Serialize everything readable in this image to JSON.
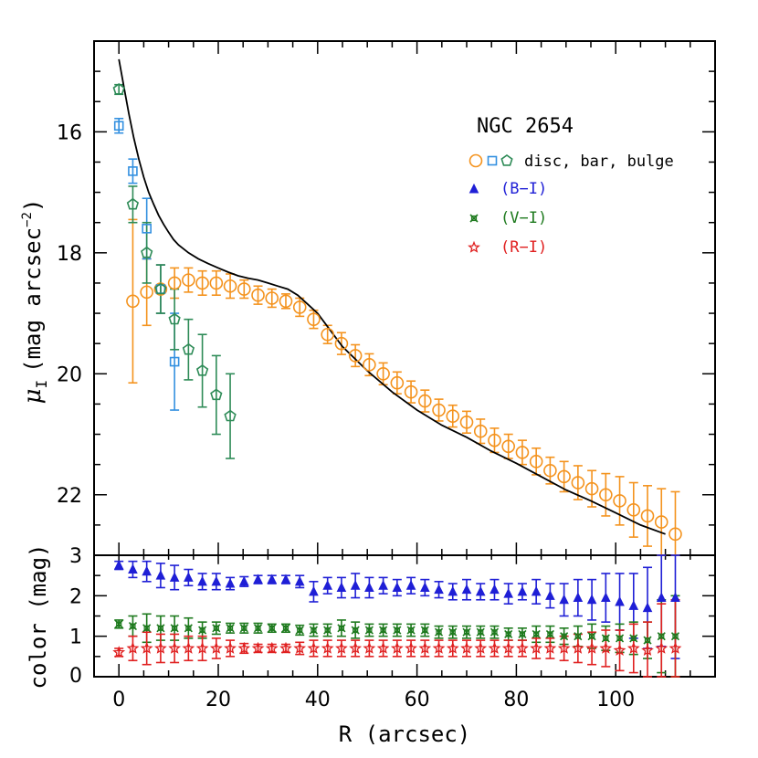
{
  "chart_data": [
    {
      "type": "scatter",
      "panel": "upper",
      "title": "NGC 2654",
      "ylabel_symbol": "μ",
      "ylabel_subscript": "I",
      "ylabel_units": "(mag arcsec",
      "ylabel_exponent": "−2",
      "ylabel_close": ")",
      "xlim": [
        -5,
        120
      ],
      "ylim": [
        23.0,
        14.5
      ],
      "y_inverted": true,
      "y_ticks": [
        16,
        18,
        20,
        22
      ],
      "y_tick_labels": [
        "16",
        "18",
        "20",
        "22"
      ],
      "legend_markers_label": "disc, bar, bulge",
      "legend_colors": [
        {
          "name": "(B−I)",
          "color": "#1f1fd6",
          "marker": "triangle"
        },
        {
          "name": "(V−I)",
          "color": "#1e7a1e",
          "marker": "x-star"
        },
        {
          "name": "(R−I)",
          "color": "#e02020",
          "marker": "star"
        }
      ],
      "series": [
        {
          "name": "disc",
          "marker": "circle",
          "color": "#f4931e",
          "x": [
            2.8,
            5.6,
            8.4,
            11.2,
            14.0,
            16.8,
            19.6,
            22.4,
            25.2,
            28.0,
            30.8,
            33.6,
            36.4,
            39.2,
            42.0,
            44.8,
            47.6,
            50.4,
            53.2,
            56.0,
            58.8,
            61.6,
            64.4,
            67.2,
            70.0,
            72.8,
            75.6,
            78.4,
            81.2,
            84.0,
            86.8,
            89.6,
            92.4,
            95.2,
            98.0,
            100.8,
            103.6,
            106.4,
            109.2,
            112.0
          ],
          "y": [
            18.8,
            18.65,
            18.6,
            18.5,
            18.45,
            18.5,
            18.5,
            18.55,
            18.6,
            18.7,
            18.75,
            18.8,
            18.9,
            19.1,
            19.35,
            19.5,
            19.7,
            19.85,
            20.0,
            20.15,
            20.3,
            20.45,
            20.6,
            20.7,
            20.8,
            20.95,
            21.1,
            21.2,
            21.3,
            21.45,
            21.6,
            21.7,
            21.8,
            21.9,
            22.0,
            22.1,
            22.25,
            22.35,
            22.45,
            22.65
          ],
          "err": [
            1.35,
            0.55,
            0.4,
            0.25,
            0.2,
            0.2,
            0.2,
            0.2,
            0.15,
            0.15,
            0.15,
            0.12,
            0.15,
            0.15,
            0.15,
            0.18,
            0.18,
            0.18,
            0.18,
            0.18,
            0.18,
            0.18,
            0.18,
            0.18,
            0.18,
            0.2,
            0.2,
            0.2,
            0.2,
            0.22,
            0.22,
            0.25,
            0.28,
            0.3,
            0.35,
            0.4,
            0.45,
            0.5,
            0.55,
            0.7
          ]
        },
        {
          "name": "bar",
          "marker": "square",
          "color": "#3390e0",
          "x": [
            0,
            2.8,
            5.6,
            8.4,
            11.2
          ],
          "y": [
            15.9,
            16.65,
            17.6,
            18.6,
            19.8
          ],
          "err": [
            0.12,
            0.2,
            0.5,
            0.4,
            0.8
          ]
        },
        {
          "name": "bulge",
          "marker": "pentagon",
          "color": "#2e8b57",
          "x": [
            0,
            2.8,
            5.6,
            8.4,
            11.2,
            14.0,
            16.8,
            19.6,
            22.4
          ],
          "y": [
            15.3,
            17.2,
            18.0,
            18.6,
            19.1,
            19.6,
            19.95,
            20.35,
            20.7
          ],
          "err": [
            0.08,
            0.3,
            0.5,
            0.4,
            0.5,
            0.5,
            0.6,
            0.65,
            0.7
          ]
        }
      ],
      "model_curve": {
        "name": "model",
        "color": "#000000",
        "x": [
          0,
          1,
          2,
          3,
          4,
          5,
          6,
          7,
          8,
          9,
          10,
          11,
          12,
          14,
          16,
          18,
          20,
          22,
          24,
          26,
          28,
          30,
          32,
          34,
          36,
          38,
          40,
          45,
          50,
          55,
          60,
          65,
          70,
          75,
          80,
          85,
          90,
          95,
          100,
          105,
          110
        ],
        "y": [
          14.8,
          15.25,
          15.7,
          16.1,
          16.45,
          16.75,
          17.0,
          17.2,
          17.38,
          17.53,
          17.66,
          17.78,
          17.87,
          18.0,
          18.1,
          18.18,
          18.25,
          18.32,
          18.38,
          18.42,
          18.45,
          18.5,
          18.55,
          18.6,
          18.7,
          18.85,
          19.0,
          19.55,
          19.95,
          20.3,
          20.6,
          20.85,
          21.05,
          21.28,
          21.48,
          21.7,
          21.92,
          22.1,
          22.3,
          22.5,
          22.65
        ]
      }
    },
    {
      "type": "scatter",
      "panel": "lower",
      "xlabel": "R (arcsec)",
      "ylabel": "color (mag)",
      "xlim": [
        -5,
        120
      ],
      "ylim": [
        0,
        3
      ],
      "x_ticks": [
        0,
        20,
        40,
        60,
        80,
        100
      ],
      "x_tick_labels": [
        "0",
        "20",
        "40",
        "60",
        "80",
        "100"
      ],
      "y_ticks": [
        0,
        1,
        2,
        3
      ],
      "y_tick_labels": [
        "0",
        "1",
        "2",
        "3"
      ],
      "series": [
        {
          "name": "(B−I)",
          "marker": "triangle",
          "color": "#1f1fd6",
          "x": [
            0,
            2.8,
            5.6,
            8.4,
            11.2,
            14.0,
            16.8,
            19.6,
            22.4,
            25.2,
            28.0,
            30.8,
            33.6,
            36.4,
            39.2,
            42.0,
            44.8,
            47.6,
            50.4,
            53.2,
            56.0,
            58.8,
            61.6,
            64.4,
            67.2,
            70.0,
            72.8,
            75.6,
            78.4,
            81.2,
            84.0,
            86.8,
            89.6,
            92.4,
            95.2,
            98.0,
            100.8,
            103.6,
            106.4,
            109.2,
            112.0
          ],
          "y": [
            2.75,
            2.65,
            2.6,
            2.5,
            2.45,
            2.45,
            2.35,
            2.35,
            2.3,
            2.35,
            2.4,
            2.4,
            2.4,
            2.35,
            2.1,
            2.25,
            2.2,
            2.25,
            2.2,
            2.25,
            2.2,
            2.25,
            2.2,
            2.15,
            2.1,
            2.15,
            2.1,
            2.15,
            2.05,
            2.1,
            2.1,
            2.0,
            1.9,
            1.95,
            1.9,
            1.95,
            1.85,
            1.75,
            1.7,
            1.95,
            1.95
          ],
          "err": [
            0.1,
            0.2,
            0.25,
            0.3,
            0.3,
            0.2,
            0.2,
            0.2,
            0.15,
            0.12,
            0.1,
            0.1,
            0.1,
            0.15,
            0.25,
            0.2,
            0.25,
            0.3,
            0.25,
            0.2,
            0.2,
            0.2,
            0.2,
            0.2,
            0.2,
            0.25,
            0.2,
            0.25,
            0.25,
            0.2,
            0.3,
            0.3,
            0.4,
            0.45,
            0.5,
            0.6,
            0.7,
            0.8,
            1.0,
            1.2,
            1.5
          ]
        },
        {
          "name": "(V−I)",
          "marker": "x-star",
          "color": "#1e7a1e",
          "x": [
            0,
            2.8,
            5.6,
            8.4,
            11.2,
            14.0,
            16.8,
            19.6,
            22.4,
            25.2,
            28.0,
            30.8,
            33.6,
            36.4,
            39.2,
            42.0,
            44.8,
            47.6,
            50.4,
            53.2,
            56.0,
            58.8,
            61.6,
            64.4,
            67.2,
            70.0,
            72.8,
            75.6,
            78.4,
            81.2,
            84.0,
            86.8,
            89.6,
            92.4,
            95.2,
            98.0,
            100.8,
            103.6,
            106.4,
            109.2,
            112.0
          ],
          "y": [
            1.3,
            1.25,
            1.2,
            1.2,
            1.2,
            1.2,
            1.15,
            1.2,
            1.2,
            1.2,
            1.2,
            1.2,
            1.2,
            1.15,
            1.15,
            1.15,
            1.2,
            1.15,
            1.15,
            1.15,
            1.15,
            1.15,
            1.15,
            1.1,
            1.1,
            1.1,
            1.1,
            1.1,
            1.05,
            1.05,
            1.05,
            1.05,
            1.0,
            1.0,
            1.0,
            0.95,
            0.95,
            0.95,
            0.9,
            1.0,
            1.0
          ],
          "err": [
            0.1,
            0.25,
            0.35,
            0.3,
            0.3,
            0.25,
            0.2,
            0.15,
            0.12,
            0.12,
            0.12,
            0.1,
            0.1,
            0.12,
            0.15,
            0.15,
            0.2,
            0.2,
            0.15,
            0.15,
            0.15,
            0.15,
            0.15,
            0.15,
            0.15,
            0.15,
            0.15,
            0.15,
            0.15,
            0.15,
            0.2,
            0.2,
            0.2,
            0.25,
            0.3,
            0.3,
            0.35,
            0.4,
            0.45,
            0.9,
            1.0
          ]
        },
        {
          "name": "(R−I)",
          "marker": "star",
          "color": "#e02020",
          "x": [
            0,
            2.8,
            5.6,
            8.4,
            11.2,
            14.0,
            16.8,
            19.6,
            22.4,
            25.2,
            28.0,
            30.8,
            33.6,
            36.4,
            39.2,
            42.0,
            44.8,
            47.6,
            50.4,
            53.2,
            56.0,
            58.8,
            61.6,
            64.4,
            67.2,
            70.0,
            72.8,
            75.6,
            78.4,
            81.2,
            84.0,
            86.8,
            89.6,
            92.4,
            95.2,
            98.0,
            100.8,
            103.6,
            106.4,
            109.2,
            112.0
          ],
          "y": [
            0.6,
            0.7,
            0.7,
            0.7,
            0.7,
            0.7,
            0.7,
            0.7,
            0.7,
            0.7,
            0.7,
            0.7,
            0.7,
            0.7,
            0.7,
            0.7,
            0.7,
            0.7,
            0.7,
            0.7,
            0.7,
            0.7,
            0.7,
            0.7,
            0.7,
            0.7,
            0.7,
            0.7,
            0.7,
            0.7,
            0.7,
            0.7,
            0.7,
            0.7,
            0.7,
            0.7,
            0.65,
            0.7,
            0.65,
            0.7,
            0.7
          ],
          "err": [
            0.1,
            0.3,
            0.4,
            0.35,
            0.35,
            0.3,
            0.3,
            0.25,
            0.2,
            0.12,
            0.1,
            0.1,
            0.1,
            0.15,
            0.2,
            0.2,
            0.2,
            0.2,
            0.2,
            0.2,
            0.2,
            0.2,
            0.2,
            0.2,
            0.2,
            0.2,
            0.2,
            0.2,
            0.2,
            0.2,
            0.25,
            0.25,
            0.3,
            0.35,
            0.4,
            0.45,
            0.5,
            0.6,
            0.7,
            1.1,
            1.2
          ]
        }
      ]
    }
  ]
}
